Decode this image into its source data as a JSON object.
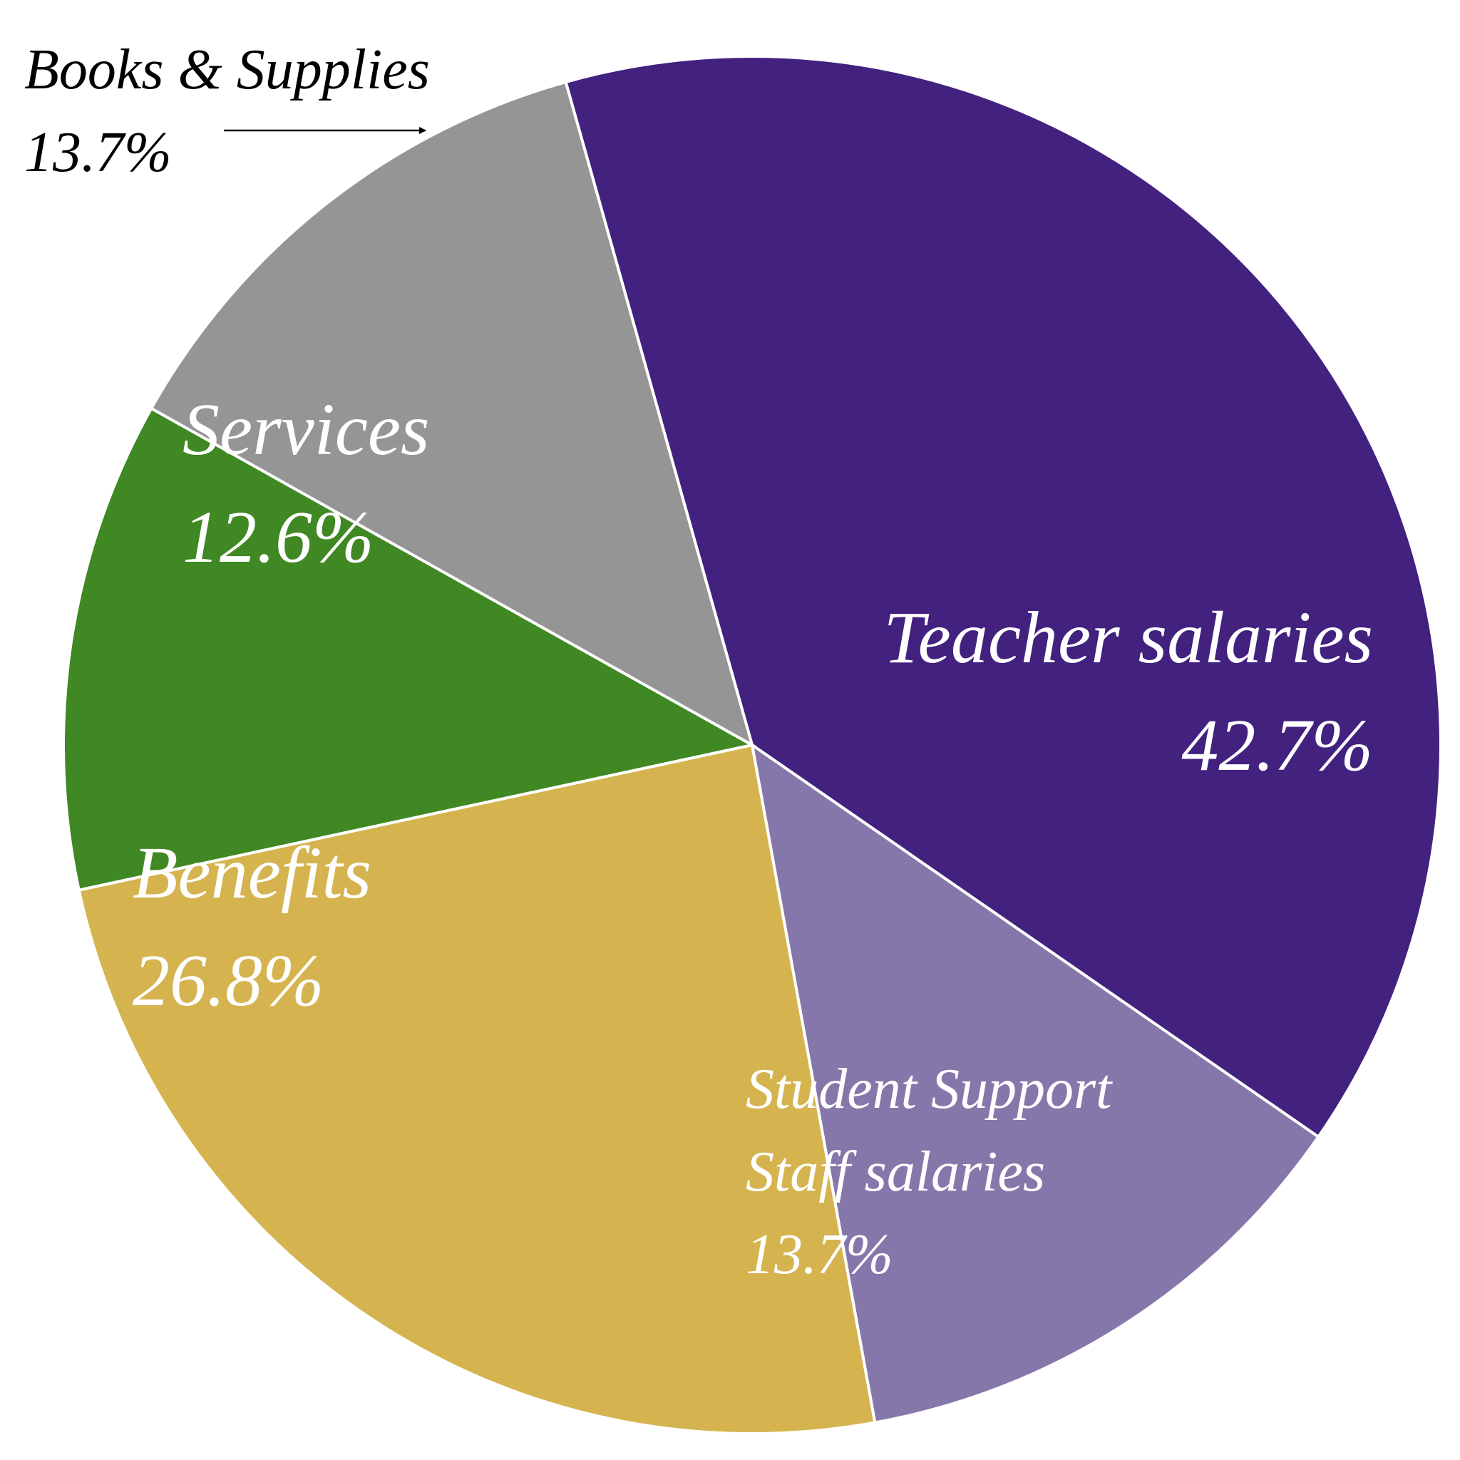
{
  "chart_data": {
    "type": "pie",
    "categories": [
      "Teacher salaries",
      "Student Support Staff salaries",
      "Benefits",
      "Services",
      "Books & Supplies"
    ],
    "values": [
      42.7,
      13.7,
      26.8,
      12.6,
      13.7
    ],
    "value_labels": [
      "42.7%",
      "13.7%",
      "26.8%",
      "12.6%",
      "13.7%"
    ],
    "colors": [
      "#42217f",
      "#8677ab",
      "#d5b450",
      "#3f8823",
      "#959595"
    ]
  }
}
